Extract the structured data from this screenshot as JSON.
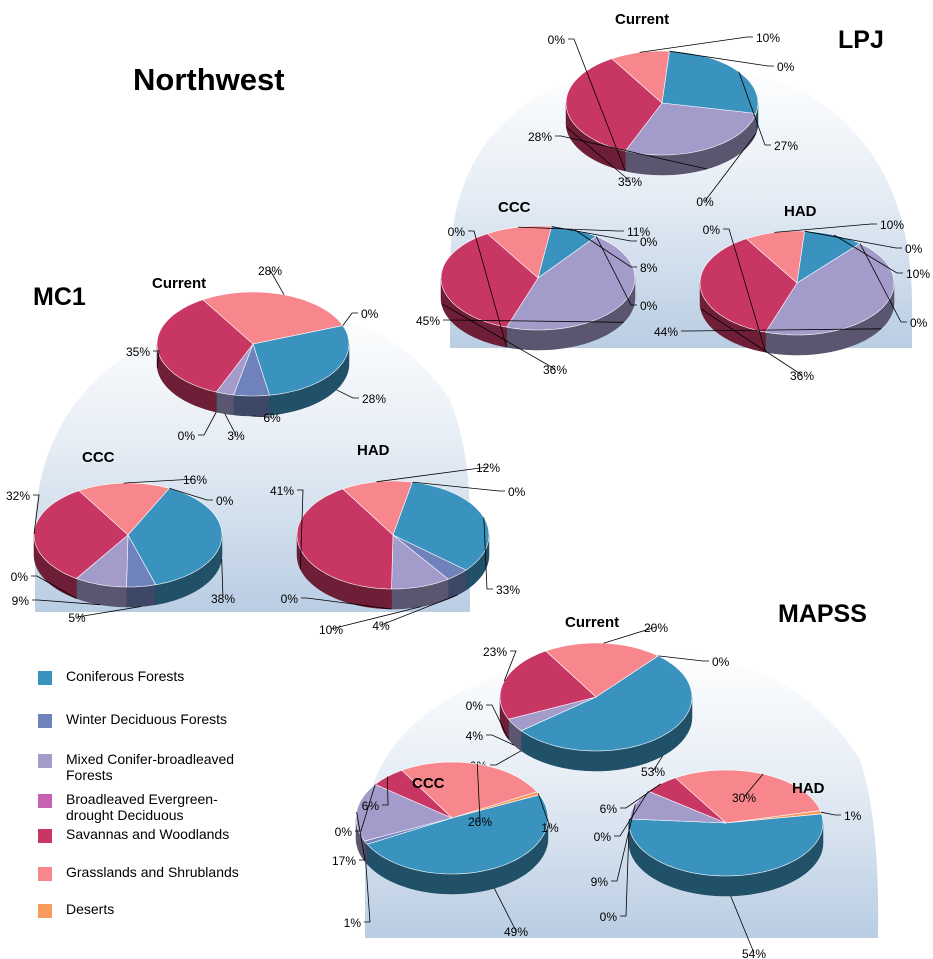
{
  "page_title": "Northwest",
  "colors": {
    "Coniferous Forests": "#3a93bf",
    "Winter Deciduous Forests": "#6f82bb",
    "Mixed Conifer-broadleaved Forests": "#a39ccb",
    "Broadleaved Evergreen-drought Deciduous": "#c861b3",
    "Savannas and Woodlands": "#c83664",
    "Grasslands and Shrublands": "#f7878c",
    "Deserts": "#f89a5e"
  },
  "legend": [
    {
      "label": "Coniferous Forests"
    },
    {
      "label": "Winter Deciduous Forests"
    },
    {
      "label": "Mixed Conifer-broadleaved Forests"
    },
    {
      "label": "Broadleaved Evergreen-drought Deciduous"
    },
    {
      "label": "Savannas and Woodlands"
    },
    {
      "label": "Grasslands and Shrublands"
    },
    {
      "label": "Deserts"
    }
  ],
  "chart_data": [
    {
      "type": "pie",
      "model": "LPJ",
      "title": "Current",
      "categories": [
        "Coniferous Forests",
        "Winter Deciduous Forests",
        "Mixed Conifer-broadleaved Forests",
        "Broadleaved Evergreen-drought Deciduous",
        "Savannas and Woodlands",
        "Grasslands and Shrublands",
        "Deserts"
      ],
      "values": [
        27,
        0,
        28,
        0,
        35,
        10,
        0
      ]
    },
    {
      "type": "pie",
      "model": "LPJ",
      "title": "CCC",
      "categories": [
        "Coniferous Forests",
        "Winter Deciduous Forests",
        "Mixed Conifer-broadleaved Forests",
        "Broadleaved Evergreen-drought Deciduous",
        "Savannas and Woodlands",
        "Grasslands and Shrublands",
        "Deserts"
      ],
      "values": [
        8,
        0,
        45,
        0,
        36,
        11,
        0
      ]
    },
    {
      "type": "pie",
      "model": "LPJ",
      "title": "HAD",
      "categories": [
        "Coniferous Forests",
        "Winter Deciduous Forests",
        "Mixed Conifer-broadleaved Forests",
        "Broadleaved Evergreen-drought Deciduous",
        "Savannas and Woodlands",
        "Grasslands and Shrublands",
        "Deserts"
      ],
      "values": [
        10,
        0,
        44,
        0,
        36,
        10,
        0
      ]
    },
    {
      "type": "pie",
      "model": "MC1",
      "title": "Current",
      "categories": [
        "Coniferous Forests",
        "Winter Deciduous Forests",
        "Mixed Conifer-broadleaved Forests",
        "Broadleaved Evergreen-drought Deciduous",
        "Savannas and Woodlands",
        "Grasslands and Shrublands",
        "Deserts"
      ],
      "values": [
        28,
        6,
        3,
        0,
        35,
        28,
        0
      ]
    },
    {
      "type": "pie",
      "model": "MC1",
      "title": "CCC",
      "categories": [
        "Coniferous Forests",
        "Winter Deciduous Forests",
        "Mixed Conifer-broadleaved Forests",
        "Broadleaved Evergreen-drought Deciduous",
        "Savannas and Woodlands",
        "Grasslands and Shrublands",
        "Deserts"
      ],
      "values": [
        38,
        5,
        9,
        0,
        32,
        16,
        0
      ]
    },
    {
      "type": "pie",
      "model": "MC1",
      "title": "HAD",
      "categories": [
        "Coniferous Forests",
        "Winter Deciduous Forests",
        "Mixed Conifer-broadleaved Forests",
        "Broadleaved Evergreen-drought Deciduous",
        "Savannas and Woodlands",
        "Grasslands and Shrublands",
        "Deserts"
      ],
      "values": [
        33,
        4,
        10,
        0,
        41,
        12,
        0
      ]
    },
    {
      "type": "pie",
      "model": "MAPSS",
      "title": "Current",
      "categories": [
        "Coniferous Forests",
        "Winter Deciduous Forests",
        "Mixed Conifer-broadleaved Forests",
        "Broadleaved Evergreen-drought Deciduous",
        "Savannas and Woodlands",
        "Grasslands and Shrublands",
        "Deserts"
      ],
      "values": [
        53,
        0,
        4,
        0,
        23,
        20,
        0
      ]
    },
    {
      "type": "pie",
      "model": "MAPSS",
      "title": "CCC",
      "categories": [
        "Coniferous Forests",
        "Winter Deciduous Forests",
        "Mixed Conifer-broadleaved Forests",
        "Broadleaved Evergreen-drought Deciduous",
        "Savannas and Woodlands",
        "Grasslands and Shrublands",
        "Deserts"
      ],
      "values": [
        49,
        1,
        17,
        0,
        6,
        26,
        1
      ]
    },
    {
      "type": "pie",
      "model": "MAPSS",
      "title": "HAD",
      "categories": [
        "Coniferous Forests",
        "Winter Deciduous Forests",
        "Mixed Conifer-broadleaved Forests",
        "Broadleaved Evergreen-drought Deciduous",
        "Savannas and Woodlands",
        "Grasslands and Shrublands",
        "Deserts"
      ],
      "values": [
        54,
        0,
        9,
        0,
        6,
        30,
        1
      ]
    }
  ]
}
